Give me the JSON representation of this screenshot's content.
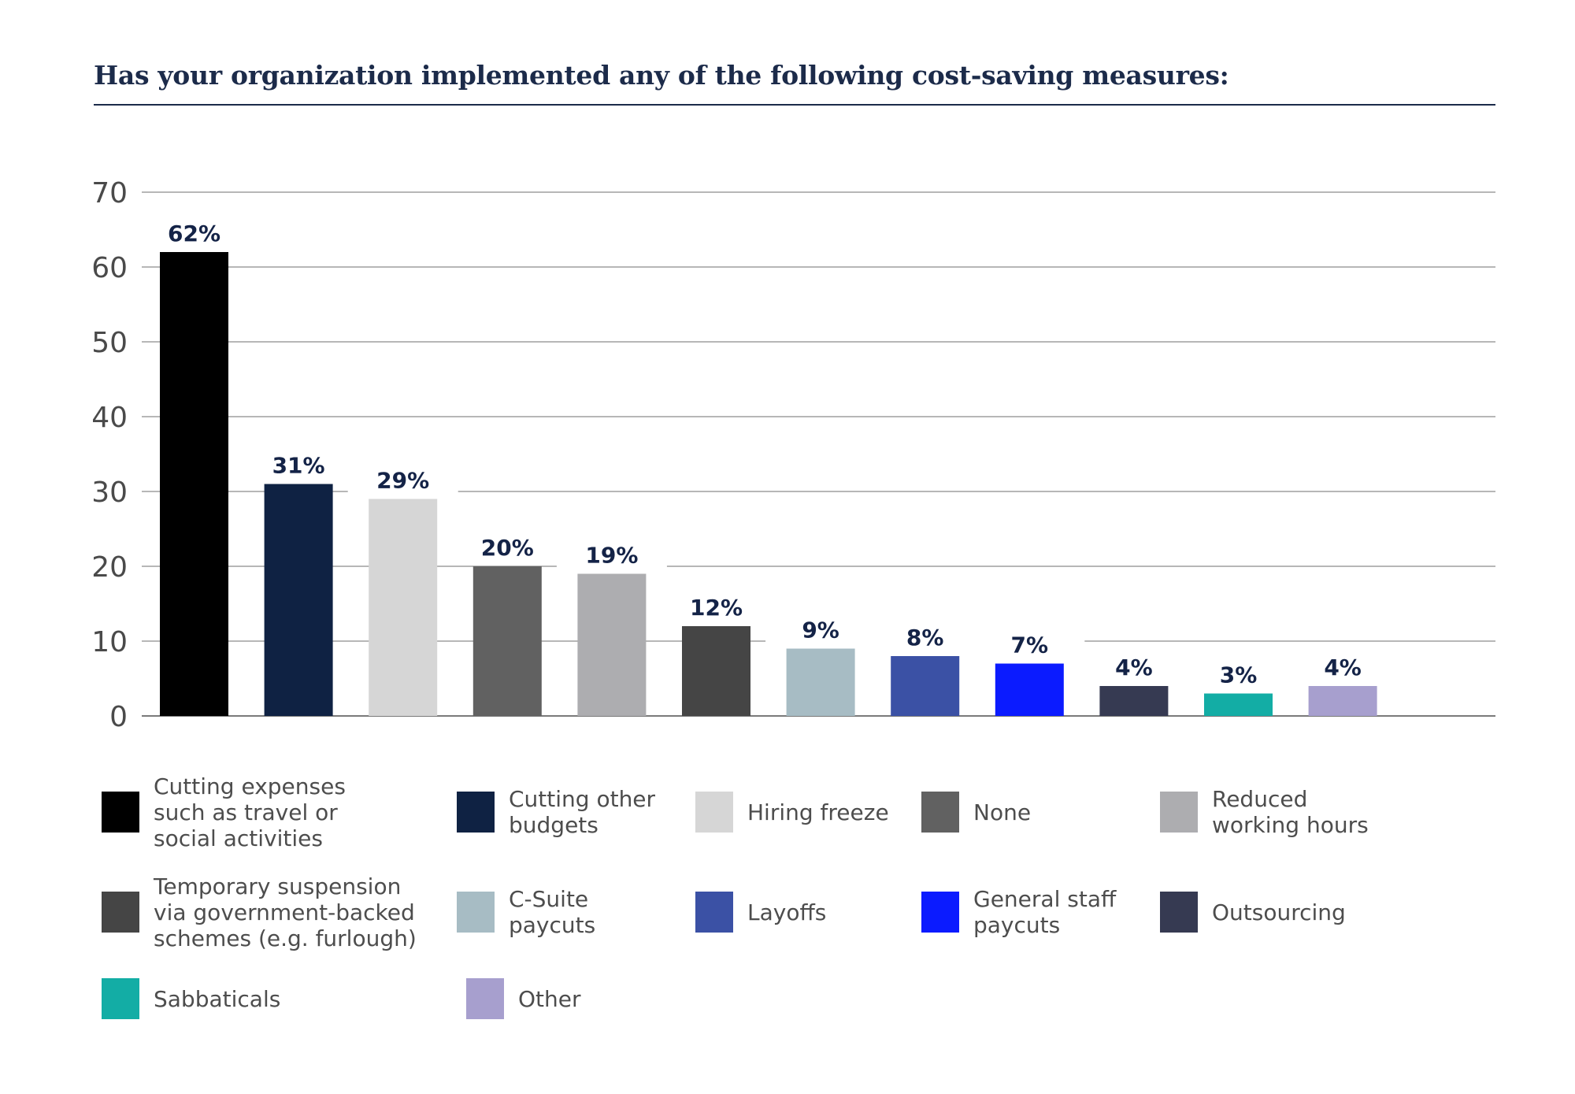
{
  "chart_data": {
    "type": "bar",
    "title": "Has your organization implemented any of the following cost-saving measures:",
    "xlabel": "",
    "ylabel": "",
    "ylim": [
      0,
      70
    ],
    "yticks": [
      0,
      10,
      20,
      30,
      40,
      50,
      60,
      70
    ],
    "grid": true,
    "legend_position": "bottom",
    "categories": [
      "Cutting expenses such as travel or social activities",
      "Cutting other budgets",
      "Hiring freeze",
      "None",
      "Reduced working hours",
      "Temporary suspension via government-backed schemes (e.g. furlough)",
      "C-Suite paycuts",
      "Layoffs",
      "General staff paycuts",
      "Outsourcing",
      "Sabbaticals",
      "Other"
    ],
    "values": [
      62,
      31,
      29,
      20,
      19,
      12,
      9,
      8,
      7,
      4,
      3,
      4
    ],
    "data_labels": [
      "62%",
      "31%",
      "29%",
      "20%",
      "19%",
      "12%",
      "9%",
      "8%",
      "7%",
      "4%",
      "3%",
      "4%"
    ],
    "colors": [
      "#000000",
      "#0f2243",
      "#d6d6d6",
      "#616161",
      "#adadb0",
      "#454545",
      "#a7bcc4",
      "#3b51a5",
      "#0b1bff",
      "#363a52",
      "#13ada5",
      "#a79fce"
    ],
    "legend": [
      [
        "Cutting expenses",
        "such as travel or",
        "social activities"
      ],
      [
        "Cutting other",
        "budgets"
      ],
      [
        "Hiring freeze"
      ],
      [
        "None"
      ],
      [
        "Reduced",
        "working hours"
      ],
      [
        "Temporary suspension",
        "via government-backed",
        "schemes (e.g. furlough)"
      ],
      [
        "C-Suite",
        "paycuts"
      ],
      [
        "Layoffs"
      ],
      [
        "General staff",
        "paycuts"
      ],
      [
        "Outsourcing"
      ],
      [
        "Sabbaticals"
      ],
      [
        "Other"
      ]
    ]
  }
}
